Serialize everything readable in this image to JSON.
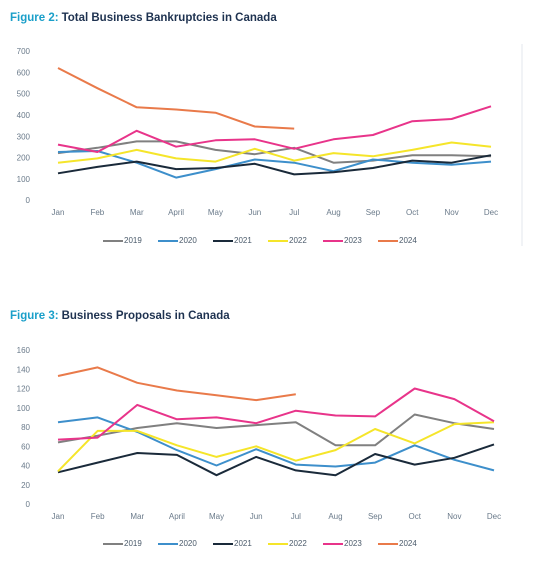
{
  "chart_data": [
    {
      "type": "line",
      "figure_label": "Figure 2:",
      "title": "Total Business Bankruptcies in Canada",
      "categories": [
        "Jan",
        "Feb",
        "Mar",
        "April",
        "May",
        "Jun",
        "Jul",
        "Aug",
        "Sep",
        "Oct",
        "Nov",
        "Dec"
      ],
      "ylim": [
        0,
        700
      ],
      "yticks": [
        0,
        100,
        200,
        300,
        400,
        500,
        600,
        700
      ],
      "grid": false,
      "legend": "bottom",
      "series": [
        {
          "name": "2019",
          "color": "#808080",
          "values": [
            225,
            250,
            280,
            280,
            240,
            220,
            250,
            180,
            190,
            215,
            215,
            210
          ]
        },
        {
          "name": "2020",
          "color": "#3d8fcb",
          "values": [
            230,
            235,
            180,
            110,
            150,
            195,
            180,
            140,
            195,
            180,
            170,
            185
          ]
        },
        {
          "name": "2021",
          "color": "#1a2a3a",
          "values": [
            130,
            160,
            185,
            150,
            155,
            175,
            125,
            135,
            155,
            190,
            180,
            215
          ]
        },
        {
          "name": "2022",
          "color": "#f5e52a",
          "values": [
            180,
            200,
            240,
            200,
            185,
            245,
            190,
            225,
            210,
            240,
            275,
            255
          ]
        },
        {
          "name": "2023",
          "color": "#e8348a",
          "values": [
            265,
            230,
            330,
            255,
            285,
            290,
            245,
            290,
            310,
            375,
            385,
            445
          ]
        },
        {
          "name": "2024",
          "color": "#e97a4a",
          "values": [
            625,
            530,
            440,
            430,
            415,
            350,
            340,
            null,
            null,
            null,
            null,
            null
          ]
        }
      ]
    },
    {
      "type": "line",
      "figure_label": "Figure 3:",
      "title": "Business Proposals in Canada",
      "categories": [
        "Jan",
        "Feb",
        "Mar",
        "April",
        "May",
        "Jun",
        "Jul",
        "Aug",
        "Sep",
        "Oct",
        "Nov",
        "Dec"
      ],
      "ylim": [
        0,
        160
      ],
      "yticks": [
        0,
        20,
        40,
        60,
        80,
        100,
        120,
        140,
        160
      ],
      "grid": false,
      "legend": "bottom",
      "series": [
        {
          "name": "2019",
          "color": "#808080",
          "values": [
            65,
            72,
            80,
            85,
            80,
            83,
            86,
            62,
            62,
            94,
            85,
            79
          ]
        },
        {
          "name": "2020",
          "color": "#3d8fcb",
          "values": [
            86,
            91,
            76,
            57,
            41,
            58,
            42,
            40,
            44,
            62,
            47,
            36
          ]
        },
        {
          "name": "2021",
          "color": "#1a2a3a",
          "values": [
            34,
            44,
            54,
            52,
            31,
            50,
            36,
            31,
            53,
            42,
            49,
            63
          ]
        },
        {
          "name": "2022",
          "color": "#f5e52a",
          "values": [
            35,
            77,
            77,
            62,
            50,
            61,
            46,
            57,
            79,
            64,
            84,
            86
          ]
        },
        {
          "name": "2023",
          "color": "#e8348a",
          "values": [
            68,
            70,
            104,
            89,
            91,
            85,
            98,
            93,
            92,
            121,
            110,
            87
          ]
        },
        {
          "name": "2024",
          "color": "#e97a4a",
          "values": [
            134,
            143,
            127,
            119,
            114,
            109,
            115,
            null,
            null,
            null,
            null,
            null
          ]
        }
      ]
    }
  ]
}
